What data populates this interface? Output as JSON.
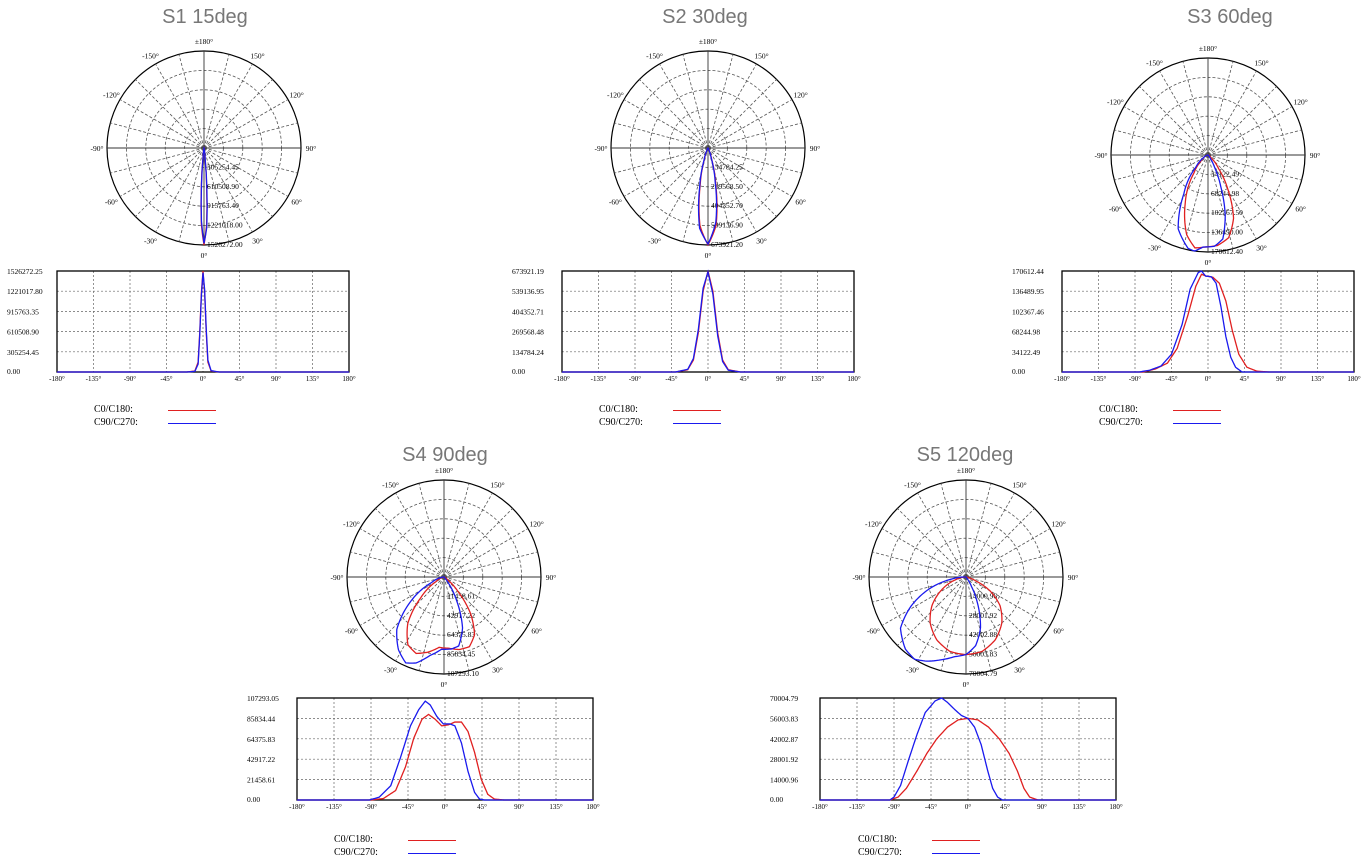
{
  "colors": {
    "c0": "#e02020",
    "c90": "#1a1aee",
    "grid": "#555555",
    "title": "#777777"
  },
  "legend": {
    "c0_label": "C0/C180:",
    "c90_label": "C90/C270:"
  },
  "chart_data": [
    {
      "type": "polar+line",
      "title": "S1 15deg",
      "polar_angle_labels": [
        "±180°",
        "150°",
        "120°",
        "90°",
        "60°",
        "30°",
        "0°",
        "-30°",
        "-60°",
        "-90°",
        "-120°",
        "-150°"
      ],
      "polar_ring_labels": [
        "305254.45",
        "610508.90",
        "915763.40",
        "1221018.00",
        "1526272.00"
      ],
      "y_tick_labels": [
        "1526272.25",
        "1221017.80",
        "915763.35",
        "610508.90",
        "305254.45",
        "0.00"
      ],
      "x_tick_labels": [
        "-180°",
        "-135°",
        "-90°",
        "-45°",
        "0°",
        "45°",
        "90°",
        "135°",
        "180°"
      ],
      "ylim": [
        0,
        1526272.25
      ],
      "xlim": [
        -180,
        180
      ],
      "series": [
        {
          "name": "C0/C180:",
          "points": [
            [
              -180,
              0
            ],
            [
              -20,
              0
            ],
            [
              -10,
              15000
            ],
            [
              -6,
              150000
            ],
            [
              -4,
              600000
            ],
            [
              -2,
              1200000
            ],
            [
              0,
              1526272
            ],
            [
              2,
              1200000
            ],
            [
              4,
              600000
            ],
            [
              6,
              150000
            ],
            [
              10,
              15000
            ],
            [
              20,
              0
            ],
            [
              180,
              0
            ]
          ]
        },
        {
          "name": "C90/C270:",
          "points": [
            [
              -180,
              0
            ],
            [
              -20,
              0
            ],
            [
              -10,
              10000
            ],
            [
              -6,
              120000
            ],
            [
              -4,
              560000
            ],
            [
              -2,
              1150000
            ],
            [
              0,
              1500000
            ],
            [
              2,
              1250000
            ],
            [
              4,
              650000
            ],
            [
              6,
              180000
            ],
            [
              10,
              20000
            ],
            [
              20,
              0
            ],
            [
              180,
              0
            ]
          ]
        }
      ]
    },
    {
      "type": "polar+line",
      "title": "S2 30deg",
      "polar_angle_labels": [
        "±180°",
        "150°",
        "120°",
        "90°",
        "60°",
        "30°",
        "0°",
        "-30°",
        "-60°",
        "-90°",
        "-120°",
        "-150°"
      ],
      "polar_ring_labels": [
        "134784.25",
        "269568.50",
        "404352.70",
        "539136.90",
        "673921.20"
      ],
      "y_tick_labels": [
        "673921.19",
        "539136.95",
        "404352.71",
        "269568.48",
        "134784.24",
        "0.00"
      ],
      "x_tick_labels": [
        "-180°",
        "-135°",
        "-90°",
        "-45°",
        "0°",
        "45°",
        "90°",
        "135°",
        "180°"
      ],
      "ylim": [
        0,
        673921.19
      ],
      "xlim": [
        -180,
        180
      ],
      "series": [
        {
          "name": "C0/C180:",
          "points": [
            [
              -180,
              0
            ],
            [
              -40,
              0
            ],
            [
              -25,
              15000
            ],
            [
              -18,
              80000
            ],
            [
              -12,
              260000
            ],
            [
              -6,
              540000
            ],
            [
              0,
              673921
            ],
            [
              6,
              540000
            ],
            [
              12,
              260000
            ],
            [
              18,
              80000
            ],
            [
              25,
              15000
            ],
            [
              40,
              0
            ],
            [
              180,
              0
            ]
          ]
        },
        {
          "name": "C90/C270:",
          "points": [
            [
              -180,
              0
            ],
            [
              -40,
              0
            ],
            [
              -25,
              18000
            ],
            [
              -18,
              90000
            ],
            [
              -12,
              280000
            ],
            [
              -6,
              560000
            ],
            [
              0,
              668000
            ],
            [
              6,
              520000
            ],
            [
              12,
              240000
            ],
            [
              18,
              70000
            ],
            [
              25,
              12000
            ],
            [
              40,
              0
            ],
            [
              180,
              0
            ]
          ]
        }
      ]
    },
    {
      "type": "polar+line",
      "title": "S3 60deg",
      "polar_angle_labels": [
        "±180°",
        "150°",
        "120°",
        "90°",
        "60°",
        "30°",
        "0°",
        "-30°",
        "-60°",
        "-90°",
        "-120°",
        "-150°"
      ],
      "polar_ring_labels": [
        "34122.49",
        "68244.98",
        "102367.50",
        "136490.00",
        "170612.40"
      ],
      "y_tick_labels": [
        "170612.44",
        "136489.95",
        "102367.46",
        "68244.98",
        "34122.49",
        "0.00"
      ],
      "x_tick_labels": [
        "-180°",
        "-135°",
        "-90°",
        "-45°",
        "0°",
        "45°",
        "90°",
        "135°",
        "180°"
      ],
      "ylim": [
        0,
        170612.44
      ],
      "xlim": [
        -180,
        180
      ],
      "series": [
        {
          "name": "C0/C180:",
          "points": [
            [
              -180,
              0
            ],
            [
              -80,
              0
            ],
            [
              -65,
              5000
            ],
            [
              -50,
              15000
            ],
            [
              -38,
              40000
            ],
            [
              -25,
              95000
            ],
            [
              -15,
              145000
            ],
            [
              -8,
              165000
            ],
            [
              -2,
              162000
            ],
            [
              6,
              160000
            ],
            [
              14,
              150000
            ],
            [
              22,
              120000
            ],
            [
              30,
              70000
            ],
            [
              38,
              30000
            ],
            [
              48,
              8000
            ],
            [
              60,
              1500
            ],
            [
              75,
              0
            ],
            [
              180,
              0
            ]
          ]
        },
        {
          "name": "C90/C270:",
          "points": [
            [
              -180,
              0
            ],
            [
              -85,
              0
            ],
            [
              -72,
              3000
            ],
            [
              -58,
              10000
            ],
            [
              -45,
              30000
            ],
            [
              -32,
              80000
            ],
            [
              -22,
              140000
            ],
            [
              -12,
              168000
            ],
            [
              -8,
              170612
            ],
            [
              -3,
              162000
            ],
            [
              4,
              161000
            ],
            [
              10,
              150000
            ],
            [
              16,
              110000
            ],
            [
              22,
              60000
            ],
            [
              28,
              25000
            ],
            [
              34,
              8000
            ],
            [
              42,
              0
            ],
            [
              180,
              0
            ]
          ]
        }
      ]
    },
    {
      "type": "polar+line",
      "title": "S4 90deg",
      "polar_angle_labels": [
        "±180°",
        "150°",
        "120°",
        "90°",
        "60°",
        "30°",
        "0°",
        "-30°",
        "-60°",
        "-90°",
        "-120°",
        "-150°"
      ],
      "polar_ring_labels": [
        "21458.61",
        "42917.22",
        "64375.83",
        "85834.45",
        "107293.10"
      ],
      "y_tick_labels": [
        "107293.05",
        "85834.44",
        "64375.83",
        "42917.22",
        "21458.61",
        "0.00"
      ],
      "x_tick_labels": [
        "-180°",
        "-135°",
        "-90°",
        "-45°",
        "0°",
        "45°",
        "90°",
        "135°",
        "180°"
      ],
      "ylim": [
        0,
        107293.05
      ],
      "xlim": [
        -180,
        180
      ],
      "series": [
        {
          "name": "C0/C180:",
          "points": [
            [
              -180,
              0
            ],
            [
              -90,
              0
            ],
            [
              -75,
              1500
            ],
            [
              -60,
              10000
            ],
            [
              -48,
              35000
            ],
            [
              -38,
              65000
            ],
            [
              -28,
              85000
            ],
            [
              -20,
              90000
            ],
            [
              -12,
              85000
            ],
            [
              -4,
              78000
            ],
            [
              4,
              79000
            ],
            [
              12,
              82000
            ],
            [
              20,
              82000
            ],
            [
              28,
              72000
            ],
            [
              36,
              50000
            ],
            [
              44,
              22000
            ],
            [
              52,
              6000
            ],
            [
              60,
              1000
            ],
            [
              72,
              0
            ],
            [
              180,
              0
            ]
          ]
        },
        {
          "name": "C90/C270:",
          "points": [
            [
              -180,
              0
            ],
            [
              -92,
              0
            ],
            [
              -80,
              3000
            ],
            [
              -66,
              15000
            ],
            [
              -54,
              45000
            ],
            [
              -42,
              78000
            ],
            [
              -32,
              95000
            ],
            [
              -24,
              104000
            ],
            [
              -18,
              100000
            ],
            [
              -10,
              88000
            ],
            [
              -2,
              80000
            ],
            [
              6,
              80000
            ],
            [
              12,
              78000
            ],
            [
              20,
              60000
            ],
            [
              28,
              30000
            ],
            [
              36,
              8000
            ],
            [
              42,
              1000
            ],
            [
              48,
              0
            ],
            [
              180,
              0
            ]
          ]
        }
      ]
    },
    {
      "type": "polar+line",
      "title": "S5 120deg",
      "polar_angle_labels": [
        "±180°",
        "150°",
        "120°",
        "90°",
        "60°",
        "30°",
        "0°",
        "-30°",
        "-60°",
        "-90°",
        "-120°",
        "-150°"
      ],
      "polar_ring_labels": [
        "14000.96",
        "28001.92",
        "42002.88",
        "56003.83",
        "70004.79"
      ],
      "y_tick_labels": [
        "70004.79",
        "56003.83",
        "42002.87",
        "28001.92",
        "14000.96",
        "0.00"
      ],
      "x_tick_labels": [
        "-180°",
        "-135°",
        "-90°",
        "-45°",
        "0°",
        "45°",
        "90°",
        "135°",
        "180°"
      ],
      "ylim": [
        0,
        70004.79
      ],
      "xlim": [
        -180,
        180
      ],
      "series": [
        {
          "name": "C0/C180:",
          "points": [
            [
              -180,
              0
            ],
            [
              -95,
              0
            ],
            [
              -85,
              2000
            ],
            [
              -75,
              8000
            ],
            [
              -62,
              20000
            ],
            [
              -50,
              32000
            ],
            [
              -38,
              42000
            ],
            [
              -25,
              50000
            ],
            [
              -12,
              55000
            ],
            [
              0,
              56000
            ],
            [
              12,
              55000
            ],
            [
              25,
              50000
            ],
            [
              38,
              42000
            ],
            [
              50,
              32000
            ],
            [
              60,
              20000
            ],
            [
              68,
              8000
            ],
            [
              75,
              2000
            ],
            [
              85,
              0
            ],
            [
              180,
              0
            ]
          ]
        },
        {
          "name": "C90/C270:",
          "points": [
            [
              -180,
              0
            ],
            [
              -95,
              0
            ],
            [
              -90,
              2000
            ],
            [
              -82,
              10000
            ],
            [
              -72,
              28000
            ],
            [
              -62,
              45000
            ],
            [
              -52,
              60000
            ],
            [
              -40,
              68000
            ],
            [
              -32,
              70004
            ],
            [
              -25,
              67000
            ],
            [
              -16,
              62000
            ],
            [
              -8,
              58000
            ],
            [
              0,
              56000
            ],
            [
              8,
              50000
            ],
            [
              16,
              38000
            ],
            [
              24,
              20000
            ],
            [
              30,
              8000
            ],
            [
              36,
              2000
            ],
            [
              42,
              0
            ],
            [
              180,
              0
            ]
          ]
        }
      ]
    }
  ]
}
